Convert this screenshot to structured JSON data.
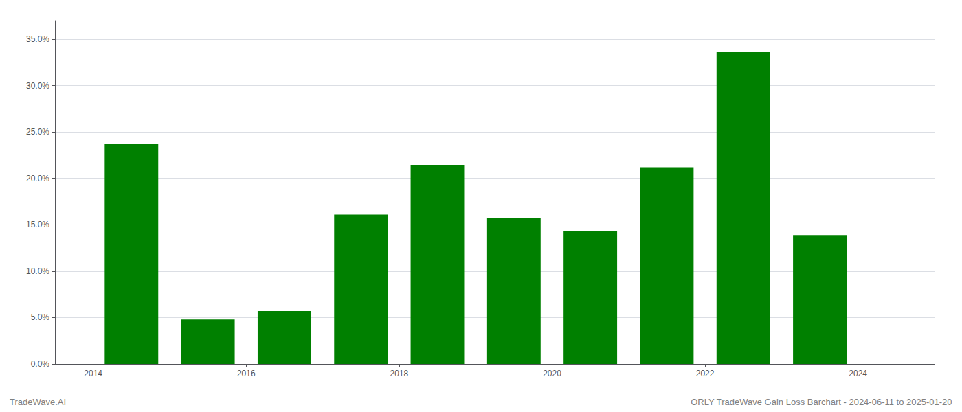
{
  "chart_data": {
    "type": "bar",
    "x": [
      2014,
      2015,
      2016,
      2017,
      2018,
      2019,
      2020,
      2021,
      2022,
      2023
    ],
    "values": [
      0.237,
      0.048,
      0.057,
      0.161,
      0.214,
      0.157,
      0.143,
      0.212,
      0.336,
      0.139
    ],
    "color": "#008000",
    "xlim": [
      2013.0,
      2024.5
    ],
    "xticks": [
      {
        "value": 2013.5,
        "label": "2014"
      },
      {
        "value": 2015.5,
        "label": "2016"
      },
      {
        "value": 2017.5,
        "label": "2018"
      },
      {
        "value": 2019.5,
        "label": "2020"
      },
      {
        "value": 2021.5,
        "label": "2022"
      },
      {
        "value": 2023.5,
        "label": "2024"
      }
    ],
    "ylim": [
      0,
      0.37
    ],
    "yticks": [
      {
        "value": 0.0,
        "label": "0.0%"
      },
      {
        "value": 0.05,
        "label": "5.0%"
      },
      {
        "value": 0.1,
        "label": "10.0%"
      },
      {
        "value": 0.15,
        "label": "15.0%"
      },
      {
        "value": 0.2,
        "label": "20.0%"
      },
      {
        "value": 0.25,
        "label": "25.0%"
      },
      {
        "value": 0.3,
        "label": "30.0%"
      },
      {
        "value": 0.35,
        "label": "35.0%"
      }
    ],
    "grid": true,
    "annotations": [
      "TradeWave.AI",
      "ORLY TradeWave Gain Loss Barchart - 2024-06-11 to 2025-01-20"
    ]
  }
}
